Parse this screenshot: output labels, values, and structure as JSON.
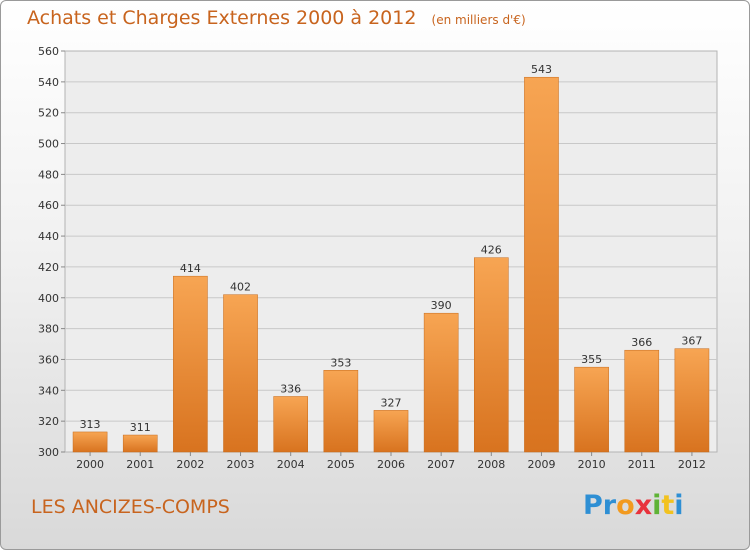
{
  "header": {
    "title": "Achats et Charges Externes 2000 à 2012",
    "unit": "(en milliers d'€)"
  },
  "footer": {
    "commune": "LES ANCIZES-COMPS",
    "logo_letters": [
      "P",
      "r",
      "o",
      "x",
      "i",
      "t",
      "i"
    ],
    "logo_colors": [
      "#2e8fd4",
      "#2e8fd4",
      "#f29a1f",
      "#e8323c",
      "#5fb336",
      "#f2c21f",
      "#2e8fd4"
    ]
  },
  "chart_data": {
    "type": "bar",
    "categories": [
      "2000",
      "2001",
      "2002",
      "2003",
      "2004",
      "2005",
      "2006",
      "2007",
      "2008",
      "2009",
      "2010",
      "2011",
      "2012"
    ],
    "values": [
      313,
      311,
      414,
      402,
      336,
      353,
      327,
      390,
      426,
      543,
      355,
      366,
      367
    ],
    "data_labels": [
      "313",
      "311",
      "414",
      "402",
      "336",
      "353",
      "327",
      "390",
      "426",
      "543",
      "355",
      "366",
      "367"
    ],
    "yticks": [
      "300",
      "320",
      "340",
      "360",
      "380",
      "400",
      "420",
      "440",
      "460",
      "480",
      "500",
      "520",
      "540",
      "560"
    ],
    "ylim": [
      300,
      560
    ],
    "grid": true,
    "bar_color": "#f0933c"
  }
}
